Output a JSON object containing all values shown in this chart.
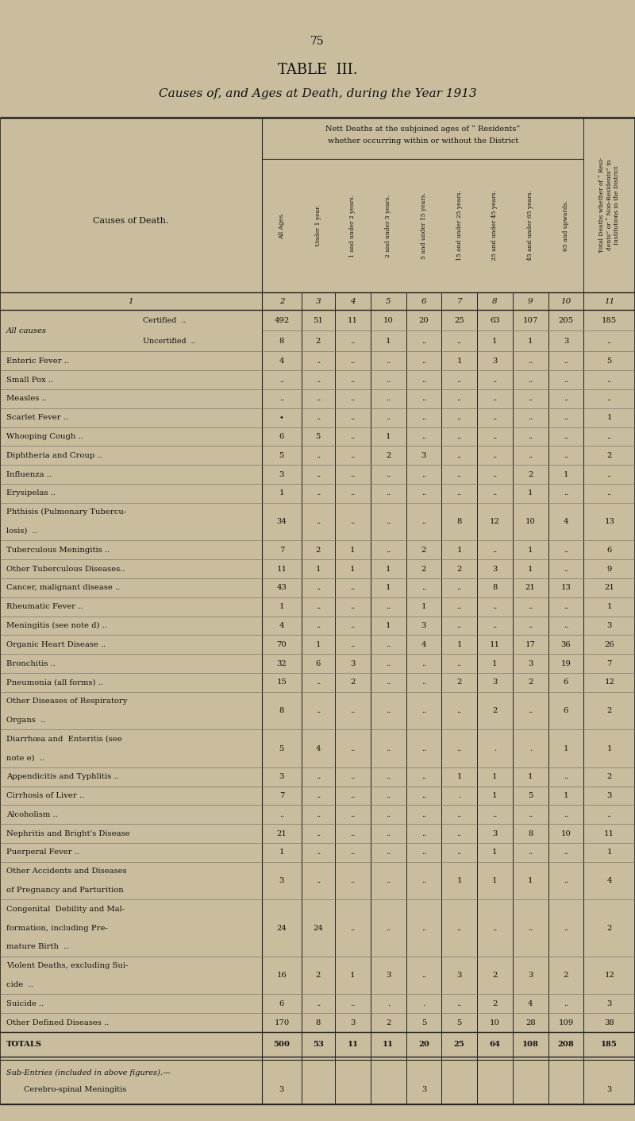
{
  "page_num": "75",
  "title": "TABLE  III.",
  "subtitle": "Causes of, and Ages at Death, during the Year 1913",
  "bg_color": "#c9bd9e",
  "col_headers": [
    "All Ages.",
    "Under 1 year.",
    "1 and under 2 years.",
    "2 and under 5 years.",
    "5 and under 15 years.",
    "15 and under 25 years.",
    "25 and under 45 years.",
    "45 and under 65 years.",
    "65 and upwards.",
    "Total Deaths whether of “ Resi-\ndents” or “ Non-Residents” in\nInstitutions in the District"
  ],
  "col_nums": [
    "2",
    "3",
    "4",
    "5",
    "6",
    "7",
    "8",
    "9",
    "10",
    "11"
  ],
  "rows": [
    {
      "label": "All causes",
      "sub": [
        {
          "sublabel": "Certified",
          "dots": "..",
          "vals": [
            "492",
            "51",
            "11",
            "10",
            "20",
            "25",
            "63",
            "107",
            "205",
            "185"
          ]
        },
        {
          "sublabel": "Uncertified",
          "dots": "..",
          "vals": [
            "8",
            "2",
            "..",
            "1",
            "..",
            "..",
            "1",
            "1",
            "3",
            ".."
          ]
        }
      ]
    },
    {
      "label": "Enteric Fever ..",
      "dots": "..",
      "vals": [
        "4",
        "..",
        "..",
        "..",
        "..",
        "1",
        "3",
        "..",
        "..",
        "5"
      ]
    },
    {
      "label": "Small Pox ..",
      "dots": "..",
      "vals": [
        "..",
        "..",
        "..",
        "..",
        "..",
        "..",
        "..",
        "..",
        "..",
        ".."
      ]
    },
    {
      "label": "Measles ..",
      "dots": "..",
      "vals": [
        "..",
        "..",
        "..",
        "..",
        "..",
        "..",
        "..",
        "..",
        "..",
        ".."
      ]
    },
    {
      "label": "Scarlet Fever ..",
      "dots": "..",
      "vals": [
        "•",
        "..",
        "..",
        "..",
        "..",
        "..",
        "..",
        "..",
        "..",
        "1"
      ]
    },
    {
      "label": "Whooping Cough ..",
      "dots": "..",
      "vals": [
        "6",
        "5",
        "..",
        "1",
        "..",
        "..",
        "..",
        "..",
        "..",
        ".."
      ]
    },
    {
      "label": "Diphtheria and Croup ..",
      "dots": "..",
      "vals": [
        "5",
        "..",
        "..",
        "2",
        "3",
        "..",
        "..",
        "..",
        "..",
        "2"
      ]
    },
    {
      "label": "Influenza ..",
      "dots": "..",
      "vals": [
        "3",
        "..",
        "..",
        "..",
        "..",
        "..",
        "..",
        "2",
        "1",
        ".."
      ]
    },
    {
      "label": "Erysipelas ..",
      "dots": "..",
      "vals": [
        "1",
        "..",
        "..",
        "..",
        "..",
        "..",
        "..",
        "1",
        "..",
        ".."
      ]
    },
    {
      "label": "Phthisis (Pulmonary Tubercu-",
      "label2": "    losis)  ..",
      "vals": [
        "34",
        "..",
        "..",
        "..",
        "..",
        "8",
        "12",
        "10",
        "4",
        "13"
      ]
    },
    {
      "label": "Tuberculous Meningitis ..",
      "vals": [
        "7",
        "2",
        "1",
        "..",
        "2",
        "1",
        "..",
        "1",
        "..",
        "6"
      ]
    },
    {
      "label": "Other Tuberculous Diseases..",
      "vals": [
        "11",
        "1",
        "1",
        "1",
        "2",
        "2",
        "3",
        "1",
        "..",
        "9"
      ]
    },
    {
      "label": "Cancer, malignant disease ..",
      "vals": [
        "43",
        "..",
        "..",
        "1",
        "..",
        "..",
        "8",
        "21",
        "13",
        "21"
      ]
    },
    {
      "label": "Rheumatic Fever ..",
      "vals": [
        "1",
        "..",
        "..",
        "..",
        "1",
        "..",
        "..",
        "..",
        "..",
        "1"
      ]
    },
    {
      "label": "Meningitis (see note d) ..",
      "vals": [
        "4",
        "..",
        "..",
        "1",
        "3",
        "..",
        "..",
        "..",
        "..",
        "3"
      ]
    },
    {
      "label": "Organic Heart Disease ..",
      "vals": [
        "70",
        "1",
        "..",
        "..",
        "4",
        "1",
        "11",
        "17",
        "36",
        "26"
      ]
    },
    {
      "label": "Bronchitis ..",
      "vals": [
        "32",
        "6",
        "3",
        "..",
        "..",
        "..",
        "1",
        "3",
        "19",
        "7"
      ]
    },
    {
      "label": "Pneumonia (all forms) ..",
      "vals": [
        "15",
        "..",
        "2",
        "..",
        "..",
        "2",
        "3",
        "2",
        "6",
        "12"
      ]
    },
    {
      "label": "Other Diseases of Respiratory",
      "label2": "    Organs  ..",
      "vals": [
        "8",
        "..",
        "..",
        "..",
        "..",
        "..",
        "2",
        "..",
        "6",
        "2"
      ]
    },
    {
      "label": "Diarrhœa and  Enteritis (see",
      "label2": "    note e)  ..",
      "vals": [
        "5",
        "4",
        "..",
        "..",
        "..",
        "..",
        ".",
        ".",
        "1",
        "1"
      ]
    },
    {
      "label": "Appendicitis and Typhlitis ..",
      "vals": [
        "3",
        "..",
        "..",
        "..",
        "..",
        "1",
        "1",
        "1",
        "..",
        "2"
      ]
    },
    {
      "label": "Cirrhosis of Liver ..",
      "vals": [
        "7",
        "..",
        "..",
        "..",
        "..",
        ".",
        "1",
        "5",
        "1",
        "3"
      ]
    },
    {
      "label": "Alcoholism ..",
      "vals": [
        "..",
        "..",
        "..",
        "..",
        "..",
        "..",
        "..",
        "..",
        "..",
        ".."
      ]
    },
    {
      "label": "Nephritis and Bright's Disease",
      "vals": [
        "21",
        "..",
        "..",
        "..",
        "..",
        "..",
        "3",
        "8",
        "10",
        "11"
      ]
    },
    {
      "label": "Puerperal Fever ..",
      "vals": [
        "1",
        "..",
        "..",
        "..",
        "..",
        "..",
        "1",
        "..",
        "..",
        "1"
      ]
    },
    {
      "label": "Other Accidents and Diseases",
      "label2": "    of Pregnancy and Parturition",
      "vals": [
        "3",
        "..",
        "..",
        "..",
        "..",
        "1",
        "1",
        "1",
        "..",
        "4"
      ]
    },
    {
      "label": "Congenital  Debility and Mal-",
      "label2": "    formation, including Pre-",
      "label3": "    mature Birth  ..",
      "vals": [
        "24",
        "24",
        "..",
        "..",
        "..",
        "..",
        "..",
        "..",
        "..",
        "2"
      ]
    },
    {
      "label": "Violent Deaths, excluding Sui-",
      "label2": "    cide  ..",
      "vals": [
        "16",
        "2",
        "1",
        "3",
        "..",
        "3",
        "2",
        "3",
        "2",
        "12"
      ]
    },
    {
      "label": "Suicide ..",
      "vals": [
        "6",
        "..",
        "..",
        ".",
        ".",
        "..",
        "2",
        "4",
        "..",
        "3"
      ]
    },
    {
      "label": "Other Defined Diseases ..",
      "vals": [
        "170",
        "8",
        "3",
        "2",
        "5",
        "5",
        "10",
        "28",
        "109",
        "38"
      ]
    },
    {
      "label": "TOTALS",
      "is_total": true,
      "vals": [
        "500",
        "53",
        "11",
        "11",
        "20",
        "25",
        "64",
        "108",
        "208",
        "185"
      ]
    }
  ],
  "sub_entries_header": "Sub-Entries (included in above figures).—",
  "sub_entries_header2": "    in above figures).—",
  "sub_entries": [
    {
      "label": "Cerebro-spinal Meningitis",
      "vals": [
        "3",
        "",
        "",
        "",
        "3",
        "",
        "",
        "",
        "",
        "3"
      ]
    }
  ]
}
